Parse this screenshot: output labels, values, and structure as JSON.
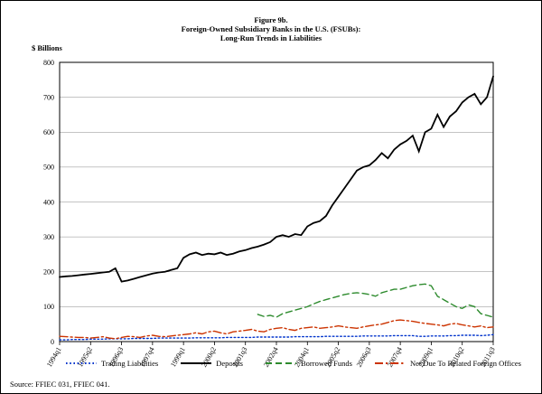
{
  "figure": {
    "title_line1": "Figure 9b.",
    "title_line2": "Foreign-Owned Subsidiary Banks in the U.S. (FSUBs):",
    "title_line3": "Long-Run Trends in Liabilities",
    "y_axis_label": "$ Billions",
    "source": "Source: FFIEC 031, FFIEC 041."
  },
  "chart_data": {
    "type": "line",
    "title": "Figure 9b. Foreign-Owned Subsidiary Banks in the U.S. (FSUBs): Long-Run Trends in Liabilities",
    "ylabel": "$ Billions",
    "xlabel": "",
    "ylim": [
      0,
      800
    ],
    "yticks": [
      0,
      100,
      200,
      300,
      400,
      500,
      600,
      700,
      800
    ],
    "grid": "horizontal",
    "legend_position": "bottom",
    "n_points": 71,
    "x_unit": "quarter",
    "x_tick_indices": [
      0,
      5,
      10,
      15,
      20,
      25,
      30,
      35,
      40,
      45,
      50,
      55,
      60,
      65,
      70
    ],
    "x_tick_labels": [
      "1994q1",
      "1995q2",
      "1996q3",
      "1997q4",
      "1999q1",
      "2000q2",
      "2001q3",
      "2002q4",
      "2004q1",
      "2005q2",
      "2006q3",
      "2007q4",
      "2009q1",
      "2010q2",
      "2011q3"
    ],
    "series": [
      {
        "name": "Trading Liabilities",
        "color": "#0033cc",
        "line_style": "dotted",
        "values": [
          5,
          5,
          6,
          6,
          6,
          7,
          7,
          7,
          8,
          8,
          8,
          8,
          9,
          9,
          9,
          9,
          10,
          10,
          10,
          10,
          10,
          10,
          11,
          11,
          11,
          11,
          11,
          12,
          12,
          12,
          12,
          12,
          13,
          13,
          13,
          13,
          13,
          13,
          14,
          14,
          14,
          14,
          14,
          15,
          15,
          15,
          15,
          15,
          15,
          16,
          16,
          16,
          16,
          16,
          17,
          17,
          17,
          17,
          15,
          15,
          16,
          16,
          16,
          17,
          17,
          18,
          18,
          18,
          17,
          18,
          20
        ]
      },
      {
        "name": "Deposits",
        "color": "#000000",
        "line_style": "solid",
        "values": [
          185,
          187,
          188,
          190,
          192,
          194,
          196,
          198,
          200,
          210,
          172,
          175,
          180,
          185,
          190,
          195,
          198,
          200,
          205,
          210,
          240,
          250,
          255,
          248,
          252,
          250,
          255,
          248,
          252,
          258,
          262,
          268,
          272,
          278,
          285,
          300,
          305,
          300,
          308,
          305,
          330,
          340,
          345,
          360,
          390,
          415,
          440,
          465,
          490,
          500,
          505,
          520,
          540,
          525,
          550,
          565,
          575,
          590,
          545,
          600,
          610,
          650,
          615,
          645,
          660,
          685,
          700,
          710,
          680,
          700,
          760
        ]
      },
      {
        "name": "Borrowed Funds",
        "color": "#2e8b2e",
        "line_style": "dashed",
        "values": [
          null,
          null,
          null,
          null,
          null,
          null,
          null,
          null,
          null,
          null,
          null,
          null,
          null,
          null,
          null,
          null,
          null,
          null,
          null,
          null,
          null,
          null,
          null,
          null,
          null,
          null,
          null,
          null,
          null,
          null,
          null,
          null,
          78,
          72,
          75,
          70,
          80,
          85,
          90,
          95,
          100,
          108,
          115,
          120,
          125,
          130,
          135,
          138,
          140,
          138,
          135,
          130,
          140,
          145,
          150,
          150,
          155,
          160,
          163,
          165,
          160,
          130,
          120,
          110,
          100,
          95,
          105,
          100,
          80,
          75,
          70
        ]
      },
      {
        "name": "Net Due To Related Foreign Offices",
        "color": "#cc3300",
        "line_style": "dashdot",
        "values": [
          15,
          14,
          13,
          12,
          12,
          10,
          12,
          14,
          10,
          8,
          12,
          15,
          14,
          12,
          16,
          18,
          15,
          14,
          16,
          18,
          20,
          22,
          25,
          22,
          28,
          30,
          25,
          22,
          28,
          30,
          32,
          35,
          30,
          28,
          35,
          38,
          40,
          35,
          32,
          38,
          40,
          42,
          38,
          40,
          42,
          45,
          42,
          40,
          38,
          42,
          45,
          48,
          50,
          55,
          60,
          62,
          60,
          58,
          55,
          52,
          50,
          48,
          45,
          50,
          52,
          48,
          45,
          42,
          45,
          40,
          42
        ]
      }
    ]
  }
}
